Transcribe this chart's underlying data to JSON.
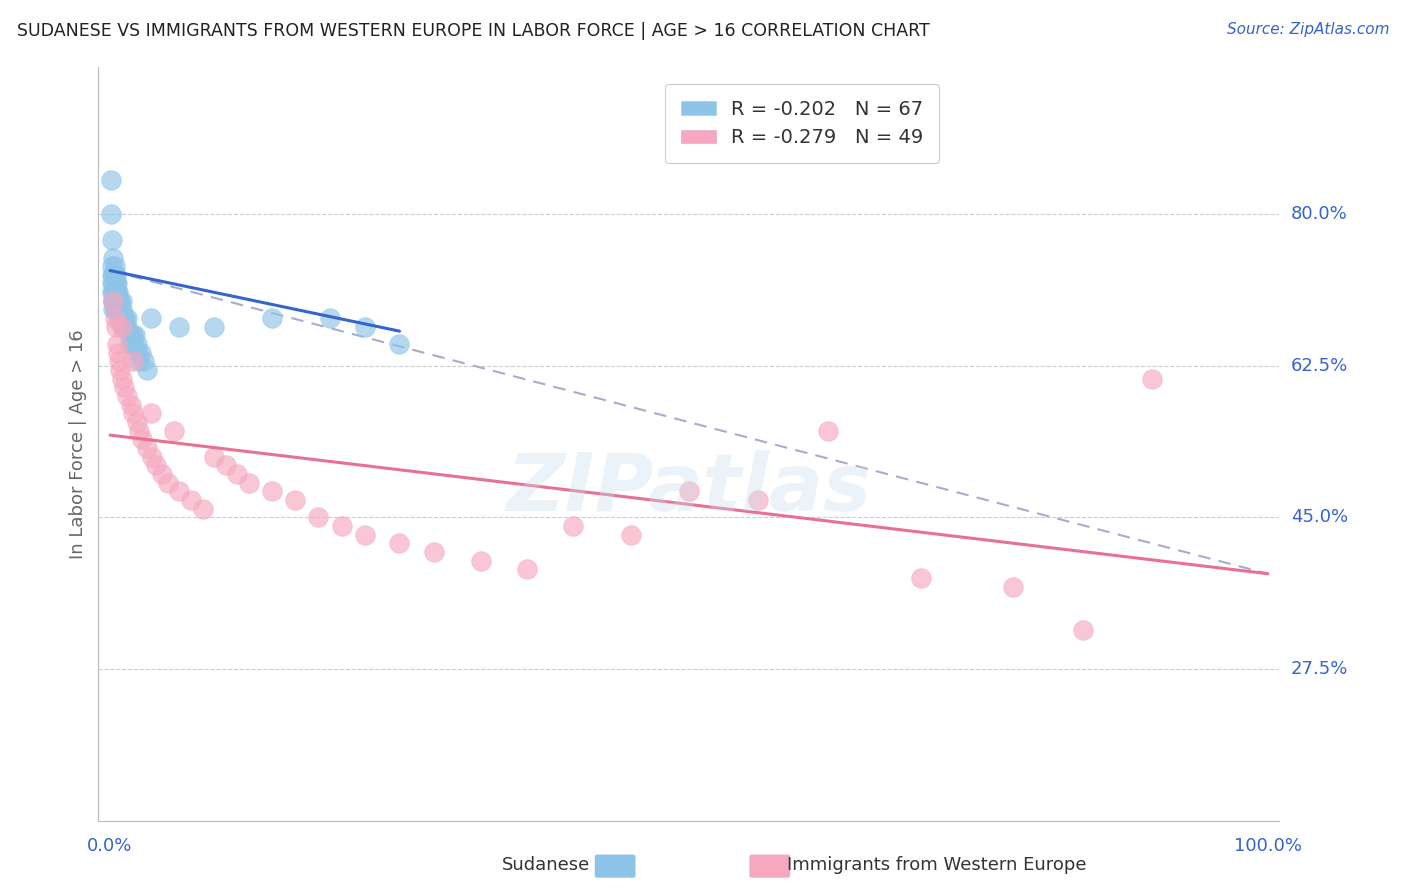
{
  "title": "SUDANESE VS IMMIGRANTS FROM WESTERN EUROPE IN LABOR FORCE | AGE > 16 CORRELATION CHART",
  "source": "Source: ZipAtlas.com",
  "ylabel": "In Labor Force | Age > 16",
  "xlim": [
    -0.01,
    1.01
  ],
  "ylim": [
    0.1,
    0.97
  ],
  "ytick_labels": [
    "80.0%",
    "62.5%",
    "45.0%",
    "27.5%"
  ],
  "ytick_values": [
    0.8,
    0.625,
    0.45,
    0.275
  ],
  "blue_R": "-0.202",
  "blue_N": "67",
  "pink_R": "-0.279",
  "pink_N": "49",
  "blue_color": "#8ec4e8",
  "pink_color": "#f5a8bf",
  "blue_line_color": "#3366cc",
  "pink_line_color": "#e87090",
  "dashed_line_color": "#aaaacc",
  "watermark": "ZIPatlas",
  "background_color": "#ffffff",
  "blue_line_x0": 0.0,
  "blue_line_y0": 0.735,
  "blue_line_x1": 0.25,
  "blue_line_y1": 0.665,
  "dash_line_x0": 0.0,
  "dash_line_y0": 0.735,
  "dash_line_x1": 1.0,
  "dash_line_y1": 0.385,
  "pink_line_x0": 0.0,
  "pink_line_y0": 0.545,
  "pink_line_x1": 1.0,
  "pink_line_y1": 0.385,
  "blue_scatter_x": [
    0.001,
    0.001,
    0.002,
    0.002,
    0.002,
    0.002,
    0.002,
    0.003,
    0.003,
    0.003,
    0.003,
    0.003,
    0.003,
    0.003,
    0.004,
    0.004,
    0.004,
    0.004,
    0.004,
    0.004,
    0.005,
    0.005,
    0.005,
    0.005,
    0.005,
    0.006,
    0.006,
    0.006,
    0.006,
    0.007,
    0.007,
    0.007,
    0.008,
    0.008,
    0.008,
    0.009,
    0.009,
    0.01,
    0.01,
    0.011,
    0.011,
    0.012,
    0.012,
    0.013,
    0.014,
    0.015,
    0.015,
    0.016,
    0.017,
    0.018,
    0.019,
    0.02,
    0.021,
    0.022,
    0.023,
    0.024,
    0.025,
    0.027,
    0.029,
    0.032,
    0.035,
    0.06,
    0.09,
    0.14,
    0.19,
    0.22,
    0.25
  ],
  "blue_scatter_y": [
    0.84,
    0.8,
    0.77,
    0.74,
    0.73,
    0.72,
    0.71,
    0.75,
    0.73,
    0.72,
    0.71,
    0.7,
    0.7,
    0.69,
    0.74,
    0.73,
    0.72,
    0.71,
    0.7,
    0.69,
    0.73,
    0.72,
    0.71,
    0.7,
    0.69,
    0.72,
    0.71,
    0.7,
    0.69,
    0.71,
    0.7,
    0.69,
    0.7,
    0.69,
    0.68,
    0.7,
    0.69,
    0.7,
    0.69,
    0.68,
    0.67,
    0.68,
    0.67,
    0.68,
    0.67,
    0.68,
    0.67,
    0.66,
    0.65,
    0.66,
    0.65,
    0.66,
    0.65,
    0.66,
    0.65,
    0.64,
    0.63,
    0.64,
    0.63,
    0.62,
    0.68,
    0.67,
    0.67,
    0.68,
    0.68,
    0.67,
    0.65
  ],
  "pink_scatter_x": [
    0.003,
    0.004,
    0.005,
    0.006,
    0.007,
    0.008,
    0.009,
    0.01,
    0.012,
    0.015,
    0.018,
    0.02,
    0.023,
    0.025,
    0.028,
    0.032,
    0.036,
    0.04,
    0.045,
    0.05,
    0.06,
    0.07,
    0.08,
    0.09,
    0.1,
    0.11,
    0.12,
    0.14,
    0.16,
    0.18,
    0.2,
    0.22,
    0.25,
    0.28,
    0.32,
    0.36,
    0.4,
    0.45,
    0.5,
    0.56,
    0.62,
    0.7,
    0.78,
    0.84,
    0.9,
    0.01,
    0.02,
    0.035,
    0.055
  ],
  "pink_scatter_y": [
    0.7,
    0.68,
    0.67,
    0.65,
    0.64,
    0.63,
    0.62,
    0.61,
    0.6,
    0.59,
    0.58,
    0.57,
    0.56,
    0.55,
    0.54,
    0.53,
    0.52,
    0.51,
    0.5,
    0.49,
    0.48,
    0.47,
    0.46,
    0.52,
    0.51,
    0.5,
    0.49,
    0.48,
    0.47,
    0.45,
    0.44,
    0.43,
    0.42,
    0.41,
    0.4,
    0.39,
    0.44,
    0.43,
    0.48,
    0.47,
    0.55,
    0.38,
    0.37,
    0.32,
    0.61,
    0.67,
    0.63,
    0.57,
    0.55
  ]
}
